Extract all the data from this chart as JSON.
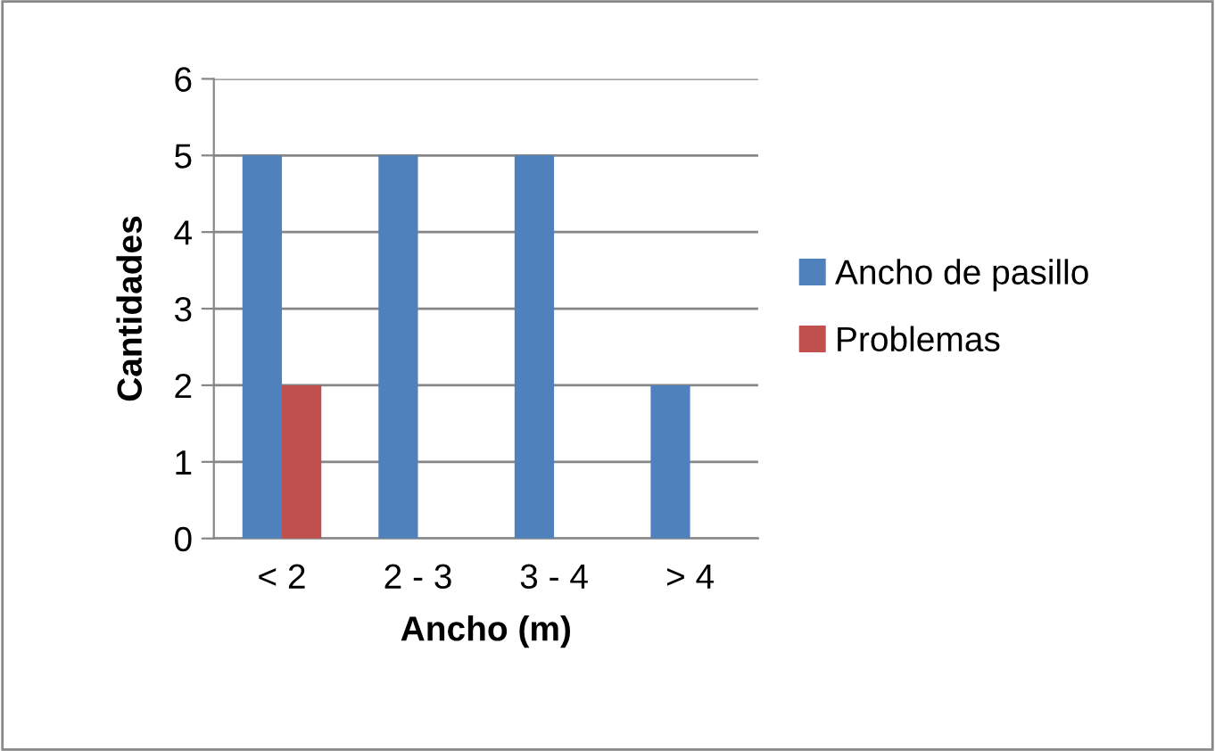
{
  "chart_data": {
    "type": "bar",
    "xlabel": "Ancho (m)",
    "ylabel": "Cantidades",
    "categories": [
      "< 2",
      "2 - 3",
      "3 - 4",
      "> 4"
    ],
    "series": [
      {
        "name": "Ancho de pasillo",
        "color": "#4f81bd",
        "values": [
          5,
          5,
          5,
          2
        ]
      },
      {
        "name": "Problemas",
        "color": "#c0504d",
        "values": [
          2,
          null,
          null,
          null
        ]
      }
    ],
    "ylim": [
      0,
      6
    ],
    "yticks": [
      0,
      1,
      2,
      3,
      4,
      5,
      6
    ],
    "grid": "y",
    "legend": "right"
  }
}
